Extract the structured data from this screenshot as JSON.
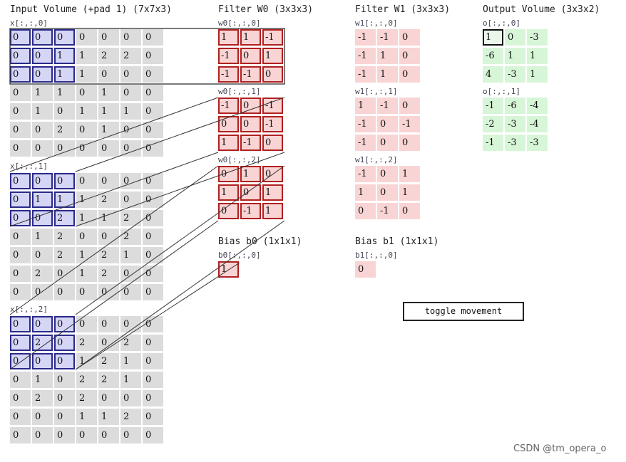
{
  "titles": {
    "input": "Input Volume (+pad 1) (7x7x3)",
    "filter0": "Filter W0 (3x3x3)",
    "filter1": "Filter W1 (3x3x3)",
    "output": "Output Volume (3x3x2)",
    "bias0": "Bias b0 (1x1x1)",
    "bias1": "Bias b1 (1x1x1)"
  },
  "slices": {
    "x0": "x[:,:,0]",
    "x1": "x[:,:,1]",
    "x2": "x[:,:,2]",
    "w00": "w0[:,:,0]",
    "w01": "w0[:,:,1]",
    "w02": "w0[:,:,2]",
    "w10": "w1[:,:,0]",
    "w11": "w1[:,:,1]",
    "w12": "w1[:,:,2]",
    "o0": "o[:,:,0]",
    "o1": "o[:,:,1]",
    "b0": "b0[:,:,0]",
    "b1": "b1[:,:,0]"
  },
  "input": [
    [
      [
        "0",
        "0",
        "0",
        "0",
        "0",
        "0",
        "0"
      ],
      [
        "0",
        "0",
        "1",
        "1",
        "2",
        "2",
        "0"
      ],
      [
        "0",
        "0",
        "1",
        "1",
        "0",
        "0",
        "0"
      ],
      [
        "0",
        "1",
        "1",
        "0",
        "1",
        "0",
        "0"
      ],
      [
        "0",
        "1",
        "0",
        "1",
        "1",
        "1",
        "0"
      ],
      [
        "0",
        "0",
        "2",
        "0",
        "1",
        "0",
        "0"
      ],
      [
        "0",
        "0",
        "0",
        "0",
        "0",
        "0",
        "0"
      ]
    ],
    [
      [
        "0",
        "0",
        "0",
        "0",
        "0",
        "0",
        "0"
      ],
      [
        "0",
        "1",
        "1",
        "1",
        "2",
        "0",
        "0"
      ],
      [
        "0",
        "0",
        "2",
        "1",
        "1",
        "2",
        "0"
      ],
      [
        "0",
        "1",
        "2",
        "0",
        "0",
        "2",
        "0"
      ],
      [
        "0",
        "0",
        "2",
        "1",
        "2",
        "1",
        "0"
      ],
      [
        "0",
        "2",
        "0",
        "1",
        "2",
        "0",
        "0"
      ],
      [
        "0",
        "0",
        "0",
        "0",
        "0",
        "0",
        "0"
      ]
    ],
    [
      [
        "0",
        "0",
        "0",
        "0",
        "0",
        "0",
        "0"
      ],
      [
        "0",
        "2",
        "0",
        "2",
        "0",
        "2",
        "0"
      ],
      [
        "0",
        "0",
        "0",
        "1",
        "2",
        "1",
        "0"
      ],
      [
        "0",
        "1",
        "0",
        "2",
        "2",
        "1",
        "0"
      ],
      [
        "0",
        "2",
        "0",
        "2",
        "0",
        "0",
        "0"
      ],
      [
        "0",
        "0",
        "0",
        "1",
        "1",
        "2",
        "0"
      ],
      [
        "0",
        "0",
        "0",
        "0",
        "0",
        "0",
        "0"
      ]
    ]
  ],
  "w0": [
    [
      [
        "1",
        "1",
        "-1"
      ],
      [
        "-1",
        "0",
        "1"
      ],
      [
        "-1",
        "-1",
        "0"
      ]
    ],
    [
      [
        "-1",
        "0",
        "-1"
      ],
      [
        "0",
        "0",
        "-1"
      ],
      [
        "1",
        "-1",
        "0"
      ]
    ],
    [
      [
        "0",
        "1",
        "0"
      ],
      [
        "1",
        "0",
        "1"
      ],
      [
        "0",
        "-1",
        "1"
      ]
    ]
  ],
  "w1": [
    [
      [
        "-1",
        "-1",
        "0"
      ],
      [
        "-1",
        "1",
        "0"
      ],
      [
        "-1",
        "1",
        "0"
      ]
    ],
    [
      [
        "1",
        "-1",
        "0"
      ],
      [
        "-1",
        "0",
        "-1"
      ],
      [
        "-1",
        "0",
        "0"
      ]
    ],
    [
      [
        "-1",
        "0",
        "1"
      ],
      [
        "1",
        "0",
        "1"
      ],
      [
        "0",
        "-1",
        "0"
      ]
    ]
  ],
  "output": [
    [
      [
        "1",
        "0",
        "-3"
      ],
      [
        "-6",
        "1",
        "1"
      ],
      [
        "4",
        "-3",
        "1"
      ]
    ],
    [
      [
        "-1",
        "-6",
        "-4"
      ],
      [
        "-2",
        "-3",
        "-4"
      ],
      [
        "-1",
        "-3",
        "-3"
      ]
    ]
  ],
  "bias0": "1",
  "bias1": "0",
  "toggle_label": "toggle movement",
  "watermark": "CSDN @tm_opera_o",
  "colors": {
    "input_cell": "#dcdcdc",
    "filter_cell": "#f9d4d4",
    "output_cell": "#d7f5d7",
    "highlight_input": "#2a2a8a",
    "highlight_filter": "#b02020"
  }
}
